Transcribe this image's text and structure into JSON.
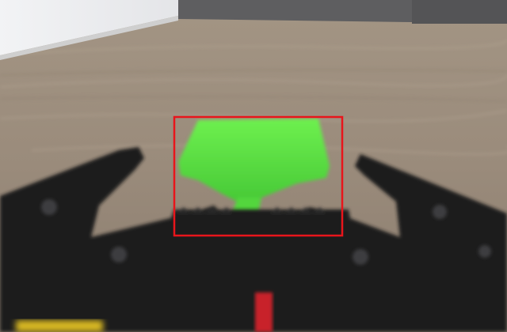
{
  "scene": {
    "description_colors": {
      "wall": "#eceef0",
      "sofa": "#5e5e60",
      "floor": "#9a8b7c",
      "gripper": "#1c1b1d",
      "green_object": "#55e03f",
      "detection_box": "#e8151b",
      "yellow_part": "#d8b820",
      "red_part": "#c8202a"
    }
  },
  "detection": {
    "label_visible": false
  }
}
